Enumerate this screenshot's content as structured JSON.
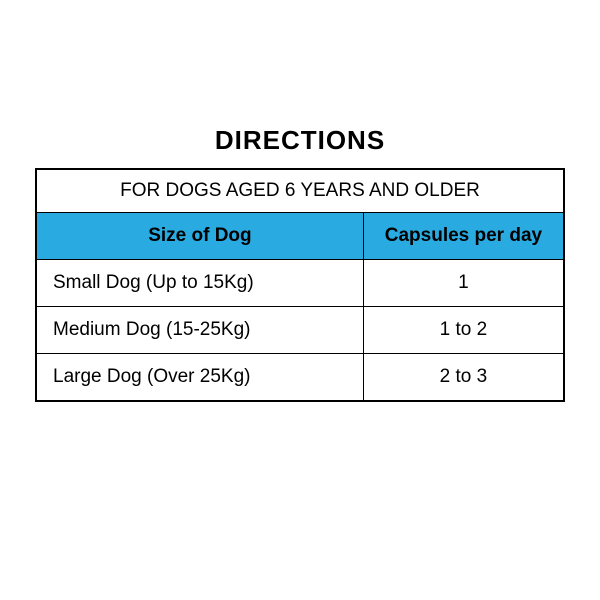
{
  "title": "DIRECTIONS",
  "table": {
    "subtitle": "FOR DOGS AGED 6 YEARS AND OLDER",
    "columns": [
      "Size of Dog",
      "Capsules per day"
    ],
    "rows": [
      [
        "Small Dog (Up to 15Kg)",
        "1"
      ],
      [
        "Medium Dog (15-25Kg)",
        "1 to 2"
      ],
      [
        "Large Dog (Over 25Kg)",
        "2 to 3"
      ]
    ],
    "header_bg_color": "#29abe2",
    "border_color": "#000000",
    "text_color": "#000000",
    "background_color": "#ffffff",
    "title_fontsize": 26,
    "subtitle_fontsize": 19,
    "cell_fontsize": 19,
    "col1_width_pct": 62,
    "col2_width_pct": 38
  }
}
